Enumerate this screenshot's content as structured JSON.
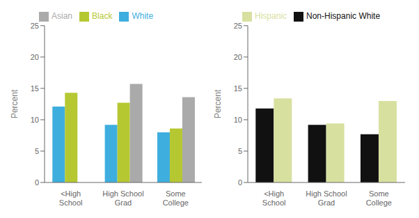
{
  "chart_data": [
    {
      "type": "bar",
      "categories": [
        "<High\nSchool",
        "High School\nGrad",
        "Some\nCollege"
      ],
      "series": [
        {
          "name": "White",
          "color": "#3eaede",
          "values": [
            12.1,
            9.2,
            8.0
          ]
        },
        {
          "name": "Black",
          "color": "#b5c832",
          "values": [
            14.3,
            12.7,
            8.6
          ]
        },
        {
          "name": "Asian",
          "color": "#aaaaaa",
          "values": [
            null,
            15.7,
            13.6
          ]
        }
      ],
      "ylabel": "Percent",
      "ylim": [
        0,
        25
      ],
      "yticks": [
        0,
        5,
        10,
        15,
        20,
        25
      ],
      "legend": "upper left",
      "grid": false
    },
    {
      "type": "bar",
      "categories": [
        "<High\nSchool",
        "High School\nGrad",
        "Some\nCollege"
      ],
      "series": [
        {
          "name": "Non-Hispanic White",
          "color": "#111111",
          "values": [
            11.8,
            9.2,
            7.7
          ]
        },
        {
          "name": "Hispanic",
          "color": "#d8e0a0",
          "values": [
            13.4,
            9.4,
            13.0
          ]
        }
      ],
      "ylabel": "Percent",
      "ylim": [
        0,
        25
      ],
      "yticks": [
        0,
        5,
        10,
        15,
        20,
        25
      ],
      "legend": "upper left",
      "grid": false
    }
  ]
}
